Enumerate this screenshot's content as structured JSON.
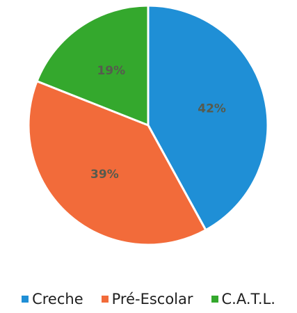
{
  "chart_data": {
    "type": "pie",
    "title": "",
    "categories": [
      "Creche",
      "Pré-Escolar",
      "C.A.T.L."
    ],
    "values": [
      42,
      39,
      19
    ],
    "labels": [
      "42%",
      "39%",
      "19%"
    ],
    "colors": [
      "#1f8fd6",
      "#f26b3a",
      "#34a82d"
    ],
    "label_colors": [
      "#565b4e",
      "#565b4e",
      "#565b4e"
    ],
    "legend_position": "bottom",
    "start": "top, clockwise"
  }
}
